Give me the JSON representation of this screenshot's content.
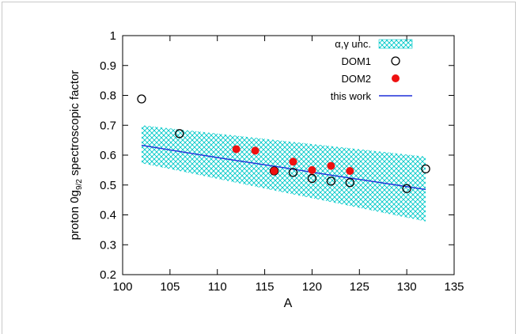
{
  "chart_data": {
    "type": "scatter",
    "title": "",
    "xlabel": "A",
    "ylabel": "proton 0g9/2 spectroscopic factor",
    "ylabel_parts": {
      "pre": "proton 0g",
      "sub": "9/2",
      "post": " spectroscopic factor"
    },
    "xlim": [
      100,
      135
    ],
    "ylim": [
      0.2,
      1.0
    ],
    "xticks": [
      "100",
      "105",
      "110",
      "115",
      "120",
      "125",
      "130",
      "135"
    ],
    "yticks": [
      "0.2",
      "0.3",
      "0.4",
      "0.5",
      "0.6",
      "0.7",
      "0.8",
      "0.9",
      "1"
    ],
    "grid": false,
    "legend_position": "top-right",
    "series": [
      {
        "name": "α,γ unc.",
        "kind": "band",
        "color": "#00c8c8",
        "x": [
          102,
          132
        ],
        "lower": [
          0.573,
          0.378
        ],
        "upper": [
          0.7,
          0.595
        ]
      },
      {
        "name": "DOM1",
        "kind": "open-circle",
        "color": "#000000",
        "x": [
          102,
          106,
          116,
          118,
          120,
          122,
          124,
          130,
          132
        ],
        "y": [
          0.788,
          0.672,
          0.547,
          0.542,
          0.522,
          0.513,
          0.508,
          0.488,
          0.554
        ]
      },
      {
        "name": "DOM2",
        "kind": "filled-circle",
        "color": "#ee1111",
        "x": [
          112,
          114,
          116,
          118,
          120,
          122,
          124
        ],
        "y": [
          0.62,
          0.615,
          0.547,
          0.578,
          0.55,
          0.564,
          0.547
        ]
      },
      {
        "name": "this work",
        "kind": "line",
        "color": "#1f2fd8",
        "x": [
          102,
          107,
          112,
          117,
          122,
          127,
          132
        ],
        "y": [
          0.633,
          0.607,
          0.582,
          0.558,
          0.533,
          0.509,
          0.485
        ]
      }
    ]
  }
}
